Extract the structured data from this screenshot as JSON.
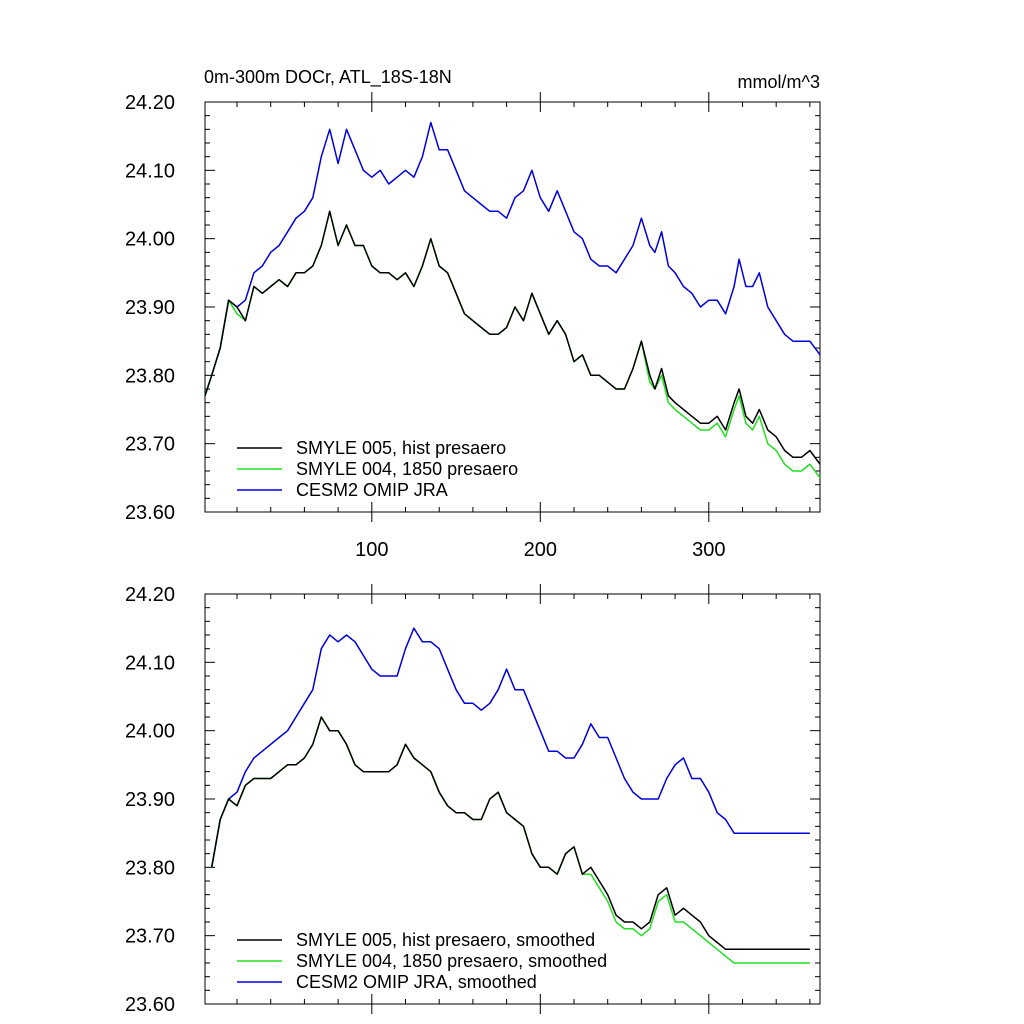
{
  "chart_data": [
    {
      "type": "line",
      "title": "0m-300m DOCr, ATL_18S-18N",
      "units": "mmol/m^3",
      "xlim": [
        1,
        366
      ],
      "ylim": [
        23.6,
        24.2
      ],
      "yticks": [
        23.6,
        23.7,
        23.8,
        23.9,
        24.0,
        24.1,
        24.2
      ],
      "ytick_labels": [
        "23.60",
        "23.70",
        "23.80",
        "23.90",
        "24.00",
        "24.10",
        "24.20"
      ],
      "xticks": [
        100,
        200,
        300
      ],
      "xtick_labels": [
        "100",
        "200",
        "300"
      ],
      "grid": false,
      "legend_position": "bottom-left",
      "series": [
        {
          "name": "SMYLE 005, hist presaero",
          "color": "#000000",
          "x": [
            1,
            5,
            10,
            15,
            20,
            25,
            30,
            35,
            40,
            45,
            50,
            55,
            60,
            65,
            70,
            75,
            80,
            85,
            90,
            95,
            100,
            105,
            110,
            115,
            120,
            125,
            130,
            135,
            140,
            145,
            150,
            155,
            160,
            165,
            170,
            175,
            180,
            185,
            190,
            195,
            200,
            205,
            210,
            215,
            220,
            225,
            230,
            235,
            240,
            245,
            250,
            255,
            260,
            265,
            268,
            272,
            276,
            280,
            285,
            290,
            295,
            300,
            305,
            310,
            315,
            318,
            322,
            326,
            330,
            335,
            340,
            345,
            350,
            355,
            360,
            366
          ],
          "y": [
            23.77,
            23.8,
            23.84,
            23.91,
            23.9,
            23.88,
            23.93,
            23.92,
            23.93,
            23.94,
            23.93,
            23.95,
            23.95,
            23.96,
            23.99,
            24.04,
            23.99,
            24.02,
            23.99,
            23.99,
            23.96,
            23.95,
            23.95,
            23.94,
            23.95,
            23.93,
            23.96,
            24.0,
            23.96,
            23.95,
            23.92,
            23.89,
            23.88,
            23.87,
            23.86,
            23.86,
            23.87,
            23.9,
            23.88,
            23.92,
            23.89,
            23.86,
            23.88,
            23.86,
            23.82,
            23.83,
            23.8,
            23.8,
            23.79,
            23.78,
            23.78,
            23.81,
            23.85,
            23.8,
            23.78,
            23.81,
            23.77,
            23.76,
            23.75,
            23.74,
            23.73,
            23.73,
            23.74,
            23.72,
            23.76,
            23.78,
            23.74,
            23.73,
            23.75,
            23.72,
            23.71,
            23.69,
            23.68,
            23.68,
            23.69,
            23.67
          ]
        },
        {
          "name": "SMYLE 004, 1850 presaero",
          "color": "#22dd22",
          "x": [
            1,
            5,
            10,
            15,
            20,
            25,
            30,
            35,
            40,
            45,
            50,
            55,
            60,
            65,
            70,
            75,
            80,
            85,
            90,
            95,
            100,
            105,
            110,
            115,
            120,
            125,
            130,
            135,
            140,
            145,
            150,
            155,
            160,
            165,
            170,
            175,
            180,
            185,
            190,
            195,
            200,
            205,
            210,
            215,
            220,
            225,
            230,
            235,
            240,
            245,
            250,
            255,
            260,
            265,
            268,
            272,
            276,
            280,
            285,
            290,
            295,
            300,
            305,
            310,
            315,
            318,
            322,
            326,
            330,
            335,
            340,
            345,
            350,
            355,
            360,
            366
          ],
          "y": [
            23.77,
            23.8,
            23.84,
            23.91,
            23.89,
            23.88,
            23.93,
            23.92,
            23.93,
            23.94,
            23.93,
            23.95,
            23.95,
            23.96,
            23.99,
            24.04,
            23.99,
            24.02,
            23.99,
            23.99,
            23.96,
            23.95,
            23.95,
            23.94,
            23.95,
            23.93,
            23.96,
            24.0,
            23.96,
            23.95,
            23.92,
            23.89,
            23.88,
            23.87,
            23.86,
            23.86,
            23.87,
            23.9,
            23.88,
            23.92,
            23.89,
            23.86,
            23.88,
            23.86,
            23.82,
            23.83,
            23.8,
            23.8,
            23.79,
            23.78,
            23.78,
            23.81,
            23.85,
            23.79,
            23.78,
            23.8,
            23.76,
            23.75,
            23.74,
            23.73,
            23.72,
            23.72,
            23.73,
            23.71,
            23.75,
            23.77,
            23.73,
            23.72,
            23.74,
            23.7,
            23.69,
            23.67,
            23.66,
            23.66,
            23.67,
            23.65
          ]
        },
        {
          "name": "CESM2 OMIP JRA",
          "color": "#0000dd",
          "x": [
            1,
            5,
            10,
            15,
            20,
            25,
            30,
            35,
            40,
            45,
            50,
            55,
            60,
            65,
            70,
            75,
            80,
            85,
            90,
            95,
            100,
            105,
            110,
            115,
            120,
            125,
            130,
            135,
            140,
            145,
            150,
            155,
            160,
            165,
            170,
            175,
            180,
            185,
            190,
            195,
            200,
            205,
            210,
            215,
            220,
            225,
            230,
            235,
            240,
            245,
            250,
            255,
            260,
            265,
            268,
            272,
            276,
            280,
            285,
            290,
            295,
            300,
            305,
            310,
            315,
            318,
            322,
            326,
            330,
            335,
            340,
            345,
            350,
            355,
            360,
            366
          ],
          "y": [
            23.77,
            23.8,
            23.84,
            23.91,
            23.9,
            23.91,
            23.95,
            23.96,
            23.98,
            23.99,
            24.01,
            24.03,
            24.04,
            24.06,
            24.12,
            24.16,
            24.11,
            24.16,
            24.13,
            24.1,
            24.09,
            24.1,
            24.08,
            24.09,
            24.1,
            24.09,
            24.12,
            24.17,
            24.13,
            24.13,
            24.1,
            24.07,
            24.06,
            24.05,
            24.04,
            24.04,
            24.03,
            24.06,
            24.07,
            24.1,
            24.06,
            24.04,
            24.07,
            24.04,
            24.01,
            24.0,
            23.97,
            23.96,
            23.96,
            23.95,
            23.97,
            23.99,
            24.03,
            23.99,
            23.98,
            24.01,
            23.96,
            23.95,
            23.93,
            23.92,
            23.9,
            23.91,
            23.91,
            23.89,
            23.93,
            23.97,
            23.93,
            23.93,
            23.95,
            23.9,
            23.88,
            23.86,
            23.85,
            23.85,
            23.85,
            23.83
          ]
        }
      ]
    },
    {
      "type": "line",
      "xlim": [
        1,
        366
      ],
      "ylim": [
        23.6,
        24.2
      ],
      "yticks": [
        23.6,
        23.7,
        23.8,
        23.9,
        24.0,
        24.1,
        24.2
      ],
      "ytick_labels": [
        "23.60",
        "23.70",
        "23.80",
        "23.90",
        "24.00",
        "24.10",
        "24.20"
      ],
      "xticks": [
        100,
        200,
        300
      ],
      "grid": false,
      "legend_position": "bottom-left",
      "series": [
        {
          "name": "SMYLE 005, hist presaero, smoothed",
          "color": "#000000",
          "x": [
            5,
            10,
            15,
            20,
            25,
            30,
            35,
            40,
            45,
            50,
            55,
            60,
            65,
            70,
            75,
            80,
            85,
            90,
            95,
            100,
            105,
            110,
            115,
            120,
            125,
            130,
            135,
            140,
            145,
            150,
            155,
            160,
            165,
            170,
            175,
            180,
            185,
            190,
            195,
            200,
            205,
            210,
            215,
            220,
            225,
            230,
            235,
            240,
            245,
            250,
            255,
            260,
            265,
            270,
            275,
            280,
            285,
            290,
            295,
            300,
            305,
            310,
            315,
            320,
            325,
            330,
            335,
            340,
            345,
            350,
            355,
            360
          ],
          "y": [
            23.8,
            23.87,
            23.9,
            23.89,
            23.92,
            23.93,
            23.93,
            23.93,
            23.94,
            23.95,
            23.95,
            23.96,
            23.98,
            24.02,
            24.0,
            24.0,
            23.98,
            23.95,
            23.94,
            23.94,
            23.94,
            23.94,
            23.95,
            23.98,
            23.96,
            23.95,
            23.94,
            23.91,
            23.89,
            23.88,
            23.88,
            23.87,
            23.87,
            23.9,
            23.91,
            23.88,
            23.87,
            23.86,
            23.82,
            23.8,
            23.8,
            23.79,
            23.82,
            23.83,
            23.79,
            23.8,
            23.78,
            23.76,
            23.73,
            23.72,
            23.72,
            23.71,
            23.72,
            23.76,
            23.77,
            23.73,
            23.74,
            23.73,
            23.72,
            23.7,
            23.69,
            23.68,
            23.68,
            23.68,
            23.68,
            23.68,
            23.68,
            23.68,
            23.68,
            23.68,
            23.68,
            23.68
          ]
        },
        {
          "name": "SMYLE 004, 1850 presaero, smoothed",
          "color": "#22dd22",
          "x": [
            5,
            10,
            15,
            20,
            25,
            30,
            35,
            40,
            45,
            50,
            55,
            60,
            65,
            70,
            75,
            80,
            85,
            90,
            95,
            100,
            105,
            110,
            115,
            120,
            125,
            130,
            135,
            140,
            145,
            150,
            155,
            160,
            165,
            170,
            175,
            180,
            185,
            190,
            195,
            200,
            205,
            210,
            215,
            220,
            225,
            230,
            235,
            240,
            245,
            250,
            255,
            260,
            265,
            270,
            275,
            280,
            285,
            290,
            295,
            300,
            305,
            310,
            315,
            320,
            325,
            330,
            335,
            340,
            345,
            350,
            355,
            360
          ],
          "y": [
            23.8,
            23.87,
            23.9,
            23.89,
            23.92,
            23.93,
            23.93,
            23.93,
            23.94,
            23.95,
            23.95,
            23.96,
            23.98,
            24.02,
            24.0,
            24.0,
            23.98,
            23.95,
            23.94,
            23.94,
            23.94,
            23.94,
            23.95,
            23.98,
            23.96,
            23.95,
            23.94,
            23.91,
            23.89,
            23.88,
            23.88,
            23.87,
            23.87,
            23.9,
            23.91,
            23.88,
            23.87,
            23.86,
            23.82,
            23.8,
            23.8,
            23.79,
            23.82,
            23.83,
            23.79,
            23.79,
            23.77,
            23.75,
            23.72,
            23.71,
            23.71,
            23.7,
            23.71,
            23.75,
            23.76,
            23.72,
            23.72,
            23.71,
            23.7,
            23.69,
            23.68,
            23.67,
            23.66,
            23.66,
            23.66,
            23.66,
            23.66,
            23.66,
            23.66,
            23.66,
            23.66,
            23.66
          ]
        },
        {
          "name": "CESM2 OMIP JRA, smoothed",
          "color": "#0000dd",
          "x": [
            5,
            10,
            15,
            20,
            25,
            30,
            35,
            40,
            45,
            50,
            55,
            60,
            65,
            70,
            75,
            80,
            85,
            90,
            95,
            100,
            105,
            110,
            115,
            120,
            125,
            130,
            135,
            140,
            145,
            150,
            155,
            160,
            165,
            170,
            175,
            180,
            185,
            190,
            195,
            200,
            205,
            210,
            215,
            220,
            225,
            230,
            235,
            240,
            245,
            250,
            255,
            260,
            265,
            270,
            275,
            280,
            285,
            290,
            295,
            300,
            305,
            310,
            315,
            320,
            325,
            330,
            335,
            340,
            345,
            350,
            355,
            360
          ],
          "y": [
            23.8,
            23.87,
            23.9,
            23.91,
            23.94,
            23.96,
            23.97,
            23.98,
            23.99,
            24.0,
            24.02,
            24.04,
            24.06,
            24.12,
            24.14,
            24.13,
            24.14,
            24.13,
            24.11,
            24.09,
            24.08,
            24.08,
            24.08,
            24.12,
            24.15,
            24.13,
            24.13,
            24.12,
            24.09,
            24.06,
            24.04,
            24.04,
            24.03,
            24.04,
            24.06,
            24.09,
            24.06,
            24.06,
            24.03,
            24.0,
            23.97,
            23.97,
            23.96,
            23.96,
            23.98,
            24.01,
            23.99,
            23.99,
            23.96,
            23.93,
            23.91,
            23.9,
            23.9,
            23.9,
            23.93,
            23.95,
            23.96,
            23.93,
            23.93,
            23.91,
            23.88,
            23.87,
            23.85,
            23.85,
            23.85,
            23.85,
            23.85,
            23.85,
            23.85,
            23.85,
            23.85,
            23.85
          ]
        }
      ]
    }
  ]
}
